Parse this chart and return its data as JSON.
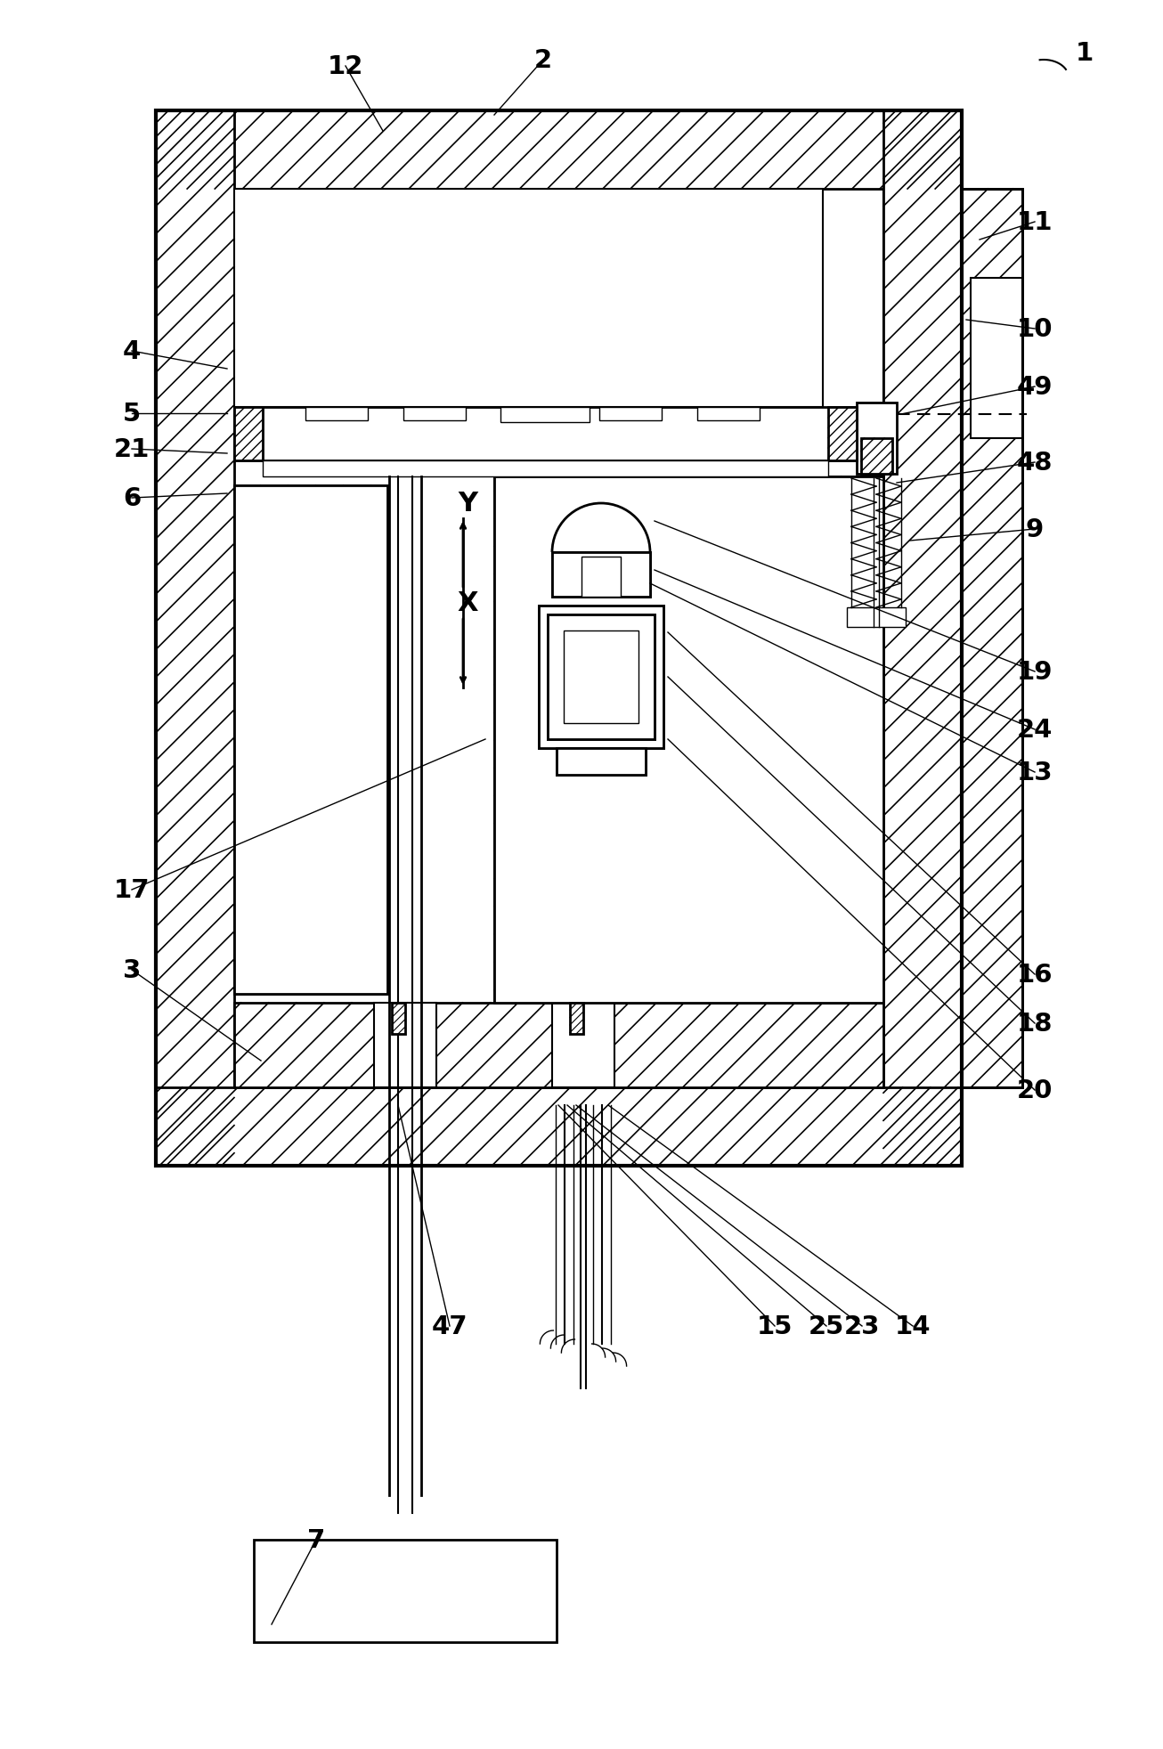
{
  "bg_color": "#ffffff",
  "line_color": "#000000",
  "figsize": [
    13.06,
    19.65
  ],
  "dpi": 100
}
